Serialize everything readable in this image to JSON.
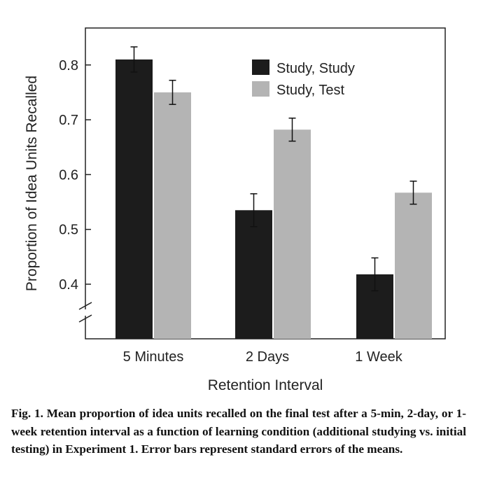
{
  "figure": {
    "caption_label": "Fig. 1.",
    "caption_text": "Mean proportion of idea units recalled on the final test after a 5-min, 2-day, or 1-week retention interval as a function of learning condition (additional studying vs. initial testing) in Experiment 1. Error bars represent standard errors of the means."
  },
  "chart_data": {
    "type": "bar",
    "title": "",
    "xlabel": "Retention Interval",
    "ylabel": "Proportion of Idea Units Recalled",
    "categories": [
      "5 Minutes",
      "2 Days",
      "1 Week"
    ],
    "ylim": [
      0.3,
      0.9
    ],
    "yticks": [
      "0.4",
      "0.5",
      "0.6",
      "0.7",
      "0.8"
    ],
    "axis_break": true,
    "grid": false,
    "legend_position": "top-right",
    "series": [
      {
        "name": "Study, Study",
        "color": "#1c1c1c",
        "values": [
          0.81,
          0.535,
          0.418
        ],
        "errors": [
          0.023,
          0.03,
          0.03
        ]
      },
      {
        "name": "Study, Test",
        "color": "#b4b4b4",
        "values": [
          0.75,
          0.682,
          0.567
        ],
        "errors": [
          0.022,
          0.021,
          0.021
        ]
      }
    ]
  }
}
